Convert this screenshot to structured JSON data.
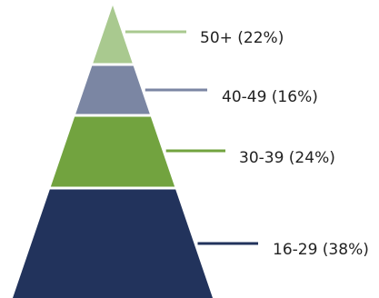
{
  "chart_data": {
    "type": "pyramid",
    "title": "",
    "legend": "none",
    "grid": false,
    "series": [
      {
        "category": "50+",
        "value": 22,
        "label": "50+ (22%)",
        "color": "#a9c98f"
      },
      {
        "category": "40-49",
        "value": 16,
        "label": "40-49 (16%)",
        "color": "#7b86a3"
      },
      {
        "category": "30-39",
        "value": 24,
        "label": "30-39 (24%)",
        "color": "#72a33f"
      },
      {
        "category": "16-29",
        "value": 38,
        "label": "16-29 (38%)",
        "color": "#22335c"
      }
    ]
  }
}
